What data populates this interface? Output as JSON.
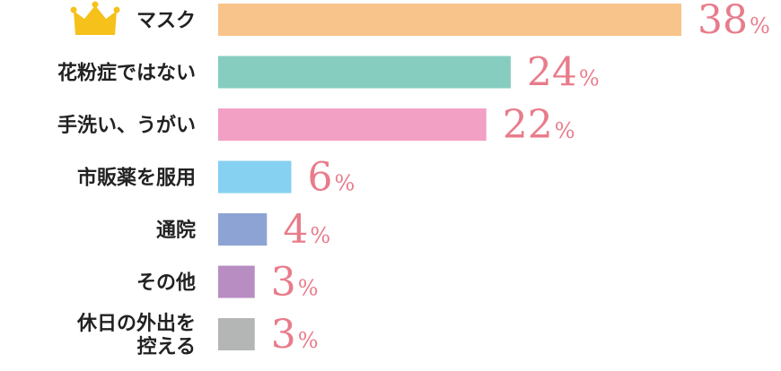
{
  "chart_data": {
    "type": "bar",
    "orientation": "horizontal",
    "categories": [
      [
        "マスク"
      ],
      [
        "花粉症ではない"
      ],
      [
        "手洗い、うがい"
      ],
      [
        "市販薬を服用"
      ],
      [
        "通院"
      ],
      [
        "その他"
      ],
      [
        "休日の外出を",
        "控える"
      ]
    ],
    "values": [
      38,
      24,
      22,
      6,
      4,
      3,
      3
    ],
    "unit": "%",
    "colors": [
      "#F8C48B",
      "#86CDC0",
      "#F2A0C4",
      "#86D0F2",
      "#8DA3D3",
      "#B88DC2",
      "#B4B5B5"
    ],
    "value_label_color": "#E87C8B",
    "top_rank_icon": "crown-icon",
    "top_rank_icon_color": "#F5C11A",
    "title": "",
    "xlabel": "",
    "ylabel": "",
    "xlim": [
      0,
      38
    ],
    "grid": false,
    "legend": "none"
  }
}
